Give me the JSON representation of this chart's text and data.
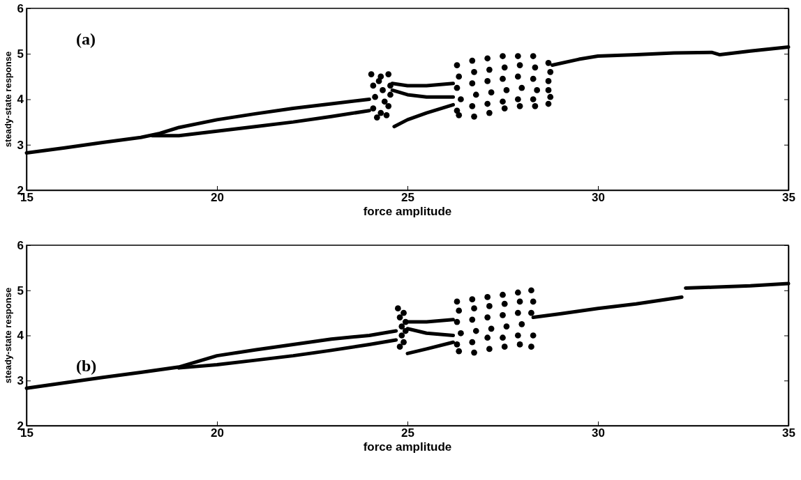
{
  "chart_data": [
    {
      "type": "line",
      "title": "(a)",
      "xlabel": "force amplitude",
      "ylabel": "steady-state response",
      "xlim": [
        15,
        35
      ],
      "ylim": [
        2,
        6
      ],
      "xticks": [
        15,
        20,
        25,
        30,
        35
      ],
      "yticks": [
        2,
        3,
        4,
        5,
        6
      ],
      "line_style": "solid",
      "series": [
        {
          "color": "#000000",
          "x": [
            15,
            16,
            17,
            18,
            18.5,
            19,
            20,
            21,
            22,
            23,
            24
          ],
          "values": [
            2.82,
            2.93,
            3.05,
            3.16,
            3.25,
            3.38,
            3.55,
            3.68,
            3.8,
            3.9,
            4.0
          ]
        },
        {
          "type": "line",
          "color": "#000000",
          "x": [
            18.3,
            19,
            20,
            21,
            22,
            23,
            24
          ],
          "values": [
            3.2,
            3.2,
            3.3,
            3.4,
            3.5,
            3.62,
            3.75
          ]
        },
        {
          "type": "line",
          "color": "#000000",
          "x": [
            24.6,
            25,
            25.5,
            26.2
          ],
          "values": [
            4.35,
            4.3,
            4.3,
            4.35
          ]
        },
        {
          "type": "line",
          "color": "#000000",
          "x": [
            24.6,
            25,
            25.5,
            26.2
          ],
          "values": [
            4.2,
            4.1,
            4.05,
            4.05
          ]
        },
        {
          "type": "line",
          "color": "#000000",
          "x": [
            24.65,
            25,
            25.5,
            26.2
          ],
          "values": [
            3.4,
            3.55,
            3.7,
            3.88
          ]
        },
        {
          "type": "line",
          "color": "#000000",
          "x": [
            28.8,
            29.5,
            30,
            31,
            32,
            33,
            33.2,
            34,
            35
          ],
          "values": [
            4.75,
            4.88,
            4.95,
            4.98,
            5.02,
            5.03,
            4.98,
            5.06,
            5.15
          ]
        },
        {
          "type": "scatter",
          "color": "#000000",
          "x": [
            24.05,
            24.1,
            24.15,
            24.3,
            24.35,
            24.4,
            24.5,
            24.55,
            24.1,
            24.3,
            24.5,
            24.2,
            24.45,
            24.25,
            24.55
          ],
          "values": [
            4.55,
            4.3,
            4.05,
            4.5,
            4.2,
            3.95,
            4.55,
            4.3,
            3.8,
            3.7,
            3.85,
            3.6,
            3.65,
            4.4,
            4.1
          ]
        },
        {
          "type": "scatter",
          "color": "#000000",
          "x": [
            26.3,
            26.35,
            26.3,
            26.4,
            26.3,
            26.35,
            26.7,
            26.75,
            26.7,
            26.8,
            26.7,
            26.75,
            27.1,
            27.15,
            27.1,
            27.2,
            27.1,
            27.15,
            27.5,
            27.55,
            27.5,
            27.6,
            27.5,
            27.55,
            27.9,
            27.95,
            27.9,
            28,
            27.9,
            27.95,
            28.3,
            28.35,
            28.3,
            28.4,
            28.3,
            28.35,
            28.7,
            28.75,
            28.7,
            28.7,
            28.75,
            28.7
          ],
          "values": [
            4.75,
            4.5,
            4.25,
            4.0,
            3.75,
            3.65,
            4.85,
            4.6,
            4.35,
            4.1,
            3.85,
            3.62,
            4.9,
            4.65,
            4.4,
            4.15,
            3.9,
            3.7,
            4.95,
            4.7,
            4.45,
            4.2,
            3.95,
            3.8,
            4.95,
            4.75,
            4.5,
            4.25,
            4.0,
            3.85,
            4.95,
            4.7,
            4.45,
            4.2,
            4.0,
            3.85,
            4.8,
            4.6,
            4.4,
            4.2,
            4.05,
            3.9
          ]
        }
      ]
    },
    {
      "type": "line",
      "title": "(b)",
      "xlabel": "force amplitude",
      "ylabel": "steady-state response",
      "xlim": [
        15,
        35
      ],
      "ylim": [
        2,
        6
      ],
      "xticks": [
        15,
        20,
        25,
        30,
        35
      ],
      "yticks": [
        2,
        3,
        4,
        5,
        6
      ],
      "line_style": "solid",
      "series": [
        {
          "color": "#000000",
          "x": [
            15,
            16,
            17,
            18,
            19,
            20,
            21,
            22,
            23,
            24,
            24.7
          ],
          "values": [
            2.83,
            2.95,
            3.07,
            3.18,
            3.3,
            3.55,
            3.68,
            3.8,
            3.92,
            4.0,
            4.1
          ]
        },
        {
          "type": "line",
          "color": "#000000",
          "x": [
            19,
            20,
            21,
            22,
            23,
            24,
            24.7
          ],
          "values": [
            3.28,
            3.35,
            3.45,
            3.55,
            3.67,
            3.8,
            3.9
          ]
        },
        {
          "type": "line",
          "color": "#000000",
          "x": [
            25,
            25.5,
            26.2
          ],
          "values": [
            4.3,
            4.3,
            4.35
          ]
        },
        {
          "type": "line",
          "color": "#000000",
          "x": [
            25,
            25.5,
            26.2
          ],
          "values": [
            4.15,
            4.05,
            4.0
          ]
        },
        {
          "type": "line",
          "color": "#000000",
          "x": [
            25,
            25.5,
            26.2
          ],
          "values": [
            3.6,
            3.7,
            3.85
          ]
        },
        {
          "type": "line",
          "color": "#000000",
          "x": [
            28.3,
            29,
            30,
            31,
            32.2
          ],
          "values": [
            4.4,
            4.48,
            4.6,
            4.7,
            4.85
          ]
        },
        {
          "type": "line",
          "color": "#000000",
          "x": [
            32.3,
            33,
            34,
            35
          ],
          "values": [
            5.05,
            5.07,
            5.1,
            5.15
          ]
        },
        {
          "type": "scatter",
          "color": "#000000",
          "x": [
            24.75,
            24.8,
            24.85,
            24.9,
            24.95,
            24.8,
            24.9,
            24.85,
            24.95
          ],
          "values": [
            4.6,
            4.4,
            4.2,
            4.5,
            4.3,
            3.75,
            3.85,
            4.0,
            4.1
          ]
        },
        {
          "type": "scatter",
          "color": "#000000",
          "x": [
            26.3,
            26.35,
            26.3,
            26.4,
            26.3,
            26.35,
            26.7,
            26.75,
            26.7,
            26.8,
            26.7,
            26.75,
            27.1,
            27.15,
            27.1,
            27.2,
            27.1,
            27.15,
            27.5,
            27.55,
            27.5,
            27.6,
            27.5,
            27.55,
            27.9,
            27.95,
            27.9,
            28,
            27.9,
            27.95,
            28.25,
            28.3,
            28.25,
            28.3,
            28.25
          ],
          "values": [
            4.75,
            4.55,
            4.3,
            4.05,
            3.8,
            3.65,
            4.8,
            4.6,
            4.35,
            4.1,
            3.85,
            3.62,
            4.85,
            4.65,
            4.4,
            4.15,
            3.95,
            3.7,
            4.9,
            4.7,
            4.45,
            4.2,
            3.95,
            3.75,
            4.95,
            4.75,
            4.5,
            4.25,
            4.0,
            3.8,
            5.0,
            4.75,
            4.5,
            4.0,
            3.75
          ]
        }
      ]
    }
  ]
}
